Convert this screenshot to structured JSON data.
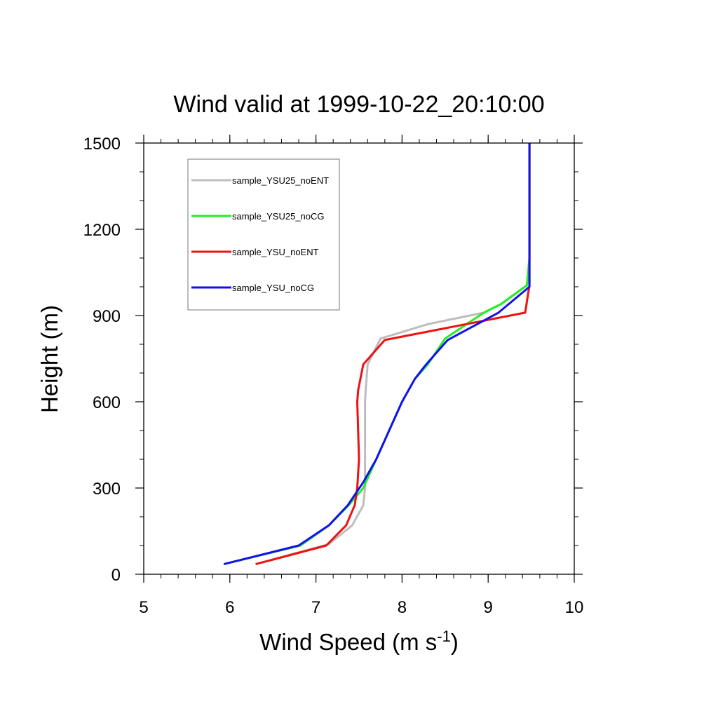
{
  "chart_data": {
    "type": "line",
    "title": "Wind valid at 1999-10-22_20:10:00",
    "xlabel": "Wind Speed (m s",
    "xlabel_superscript": "-1",
    "xlabel_suffix": ")",
    "ylabel": "Height (m)",
    "xlim": [
      5,
      10
    ],
    "ylim": [
      0,
      1500
    ],
    "xticks": [
      5,
      6,
      7,
      8,
      9,
      10
    ],
    "yticks": [
      0,
      300,
      600,
      900,
      1200,
      1500
    ],
    "legend_position": "top-left",
    "grid": false,
    "series": [
      {
        "name": "sample_YSU25_noENT",
        "color": "#bdbdbd",
        "points": [
          [
            6.3,
            35
          ],
          [
            7.15,
            105
          ],
          [
            7.42,
            170
          ],
          [
            7.55,
            240
          ],
          [
            7.57,
            300
          ],
          [
            7.57,
            400
          ],
          [
            7.57,
            500
          ],
          [
            7.57,
            600
          ],
          [
            7.58,
            650
          ],
          [
            7.6,
            730
          ],
          [
            7.75,
            820
          ],
          [
            8.3,
            870
          ],
          [
            8.95,
            910
          ],
          [
            9.15,
            940
          ],
          [
            9.45,
            1005
          ],
          [
            9.48,
            1100
          ],
          [
            9.48,
            1200
          ],
          [
            9.48,
            1300
          ],
          [
            9.48,
            1400
          ],
          [
            9.48,
            1500
          ]
        ]
      },
      {
        "name": "sample_YSU25_noCG",
        "color": "#22ee22",
        "points": [
          [
            5.93,
            35
          ],
          [
            6.82,
            100
          ],
          [
            7.15,
            170
          ],
          [
            7.38,
            240
          ],
          [
            7.55,
            300
          ],
          [
            7.7,
            400
          ],
          [
            7.85,
            500
          ],
          [
            8.0,
            600
          ],
          [
            8.15,
            680
          ],
          [
            8.3,
            730
          ],
          [
            8.5,
            820
          ],
          [
            8.95,
            910
          ],
          [
            9.15,
            940
          ],
          [
            9.45,
            1005
          ],
          [
            9.48,
            1100
          ],
          [
            9.48,
            1200
          ],
          [
            9.48,
            1300
          ],
          [
            9.48,
            1400
          ],
          [
            9.48,
            1500
          ]
        ]
      },
      {
        "name": "sample_YSU_noENT",
        "color": "#ee1111",
        "points": [
          [
            6.3,
            35
          ],
          [
            7.12,
            100
          ],
          [
            7.35,
            170
          ],
          [
            7.45,
            240
          ],
          [
            7.48,
            300
          ],
          [
            7.5,
            400
          ],
          [
            7.49,
            500
          ],
          [
            7.48,
            600
          ],
          [
            7.49,
            640
          ],
          [
            7.55,
            730
          ],
          [
            7.8,
            815
          ],
          [
            9.43,
            910
          ],
          [
            9.48,
            1005
          ],
          [
            9.48,
            1100
          ],
          [
            9.48,
            1200
          ],
          [
            9.48,
            1300
          ],
          [
            9.48,
            1400
          ],
          [
            9.48,
            1500
          ]
        ]
      },
      {
        "name": "sample_YSU_noCG",
        "color": "#1111ee",
        "points": [
          [
            5.93,
            35
          ],
          [
            6.8,
            100
          ],
          [
            7.15,
            170
          ],
          [
            7.37,
            240
          ],
          [
            7.55,
            320
          ],
          [
            7.7,
            400
          ],
          [
            7.85,
            500
          ],
          [
            8.0,
            600
          ],
          [
            8.15,
            680
          ],
          [
            8.28,
            730
          ],
          [
            8.53,
            815
          ],
          [
            9.12,
            910
          ],
          [
            9.48,
            1000
          ],
          [
            9.48,
            1100
          ],
          [
            9.48,
            1200
          ],
          [
            9.48,
            1300
          ],
          [
            9.48,
            1400
          ],
          [
            9.48,
            1500
          ]
        ]
      }
    ]
  }
}
